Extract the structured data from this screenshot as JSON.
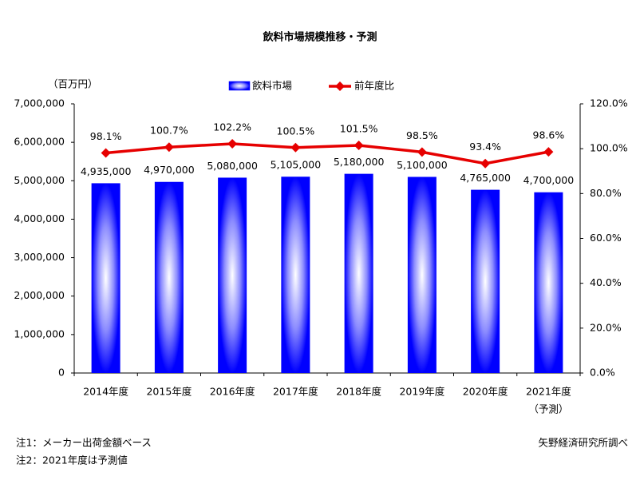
{
  "chart_data": {
    "type": "combo",
    "title": "飲料市場規模推移・予測",
    "y_label": "（百万円）",
    "categories": [
      "2014年度",
      "2015年度",
      "2016年度",
      "2017年度",
      "2018年度",
      "2019年度",
      "2020年度",
      "2021年度"
    ],
    "forecast_note": "（予測）",
    "series": [
      {
        "name": "飲料市場",
        "type": "bar",
        "color": "#0000ff",
        "values": [
          4935000,
          4970000,
          5080000,
          5105000,
          5180000,
          5100000,
          4765000,
          4700000
        ],
        "value_labels": [
          "4,935,000",
          "4,970,000",
          "5,080,000",
          "5,105,000",
          "5,180,000",
          "5,100,000",
          "4,765,000",
          "4,700,000"
        ]
      },
      {
        "name": "前年度比",
        "type": "line",
        "axis": "y2",
        "color": "#e60000",
        "values": [
          98.1,
          100.7,
          102.2,
          100.5,
          101.5,
          98.5,
          93.4,
          98.6
        ],
        "value_labels": [
          "98.1%",
          "100.7%",
          "102.2%",
          "100.5%",
          "101.5%",
          "98.5%",
          "93.4%",
          "98.6%"
        ]
      }
    ],
    "ylim": [
      0,
      7000000
    ],
    "yticks": [
      0,
      {
        "value": 1000000,
        "label": "1,000,000"
      },
      {
        "value": 2000000,
        "label": "2,000,000"
      },
      {
        "value": 3000000,
        "label": "3,000,000"
      },
      {
        "value": 4000000,
        "label": "4,000,000"
      },
      {
        "value": 5000000,
        "label": "5,000,000"
      },
      {
        "value": 6000000,
        "label": "6,000,000"
      },
      {
        "value": 7000000,
        "label": "7,000,000"
      }
    ],
    "y2lim": [
      0,
      120
    ],
    "y2ticks": [
      {
        "value": 0,
        "label": "0.0%"
      },
      {
        "value": 20,
        "label": "20.0%"
      },
      {
        "value": 40,
        "label": "40.0%"
      },
      {
        "value": 60,
        "label": "60.0%"
      },
      {
        "value": 80,
        "label": "80.0%"
      },
      {
        "value": 100,
        "label": "100.0%"
      },
      {
        "value": 120,
        "label": "120.0%"
      }
    ],
    "grid": false,
    "notes": [
      "注1：メーカー出荷金額ベース",
      "注2：2021年度は予測値"
    ],
    "source": "矢野経済研究所調べ"
  }
}
